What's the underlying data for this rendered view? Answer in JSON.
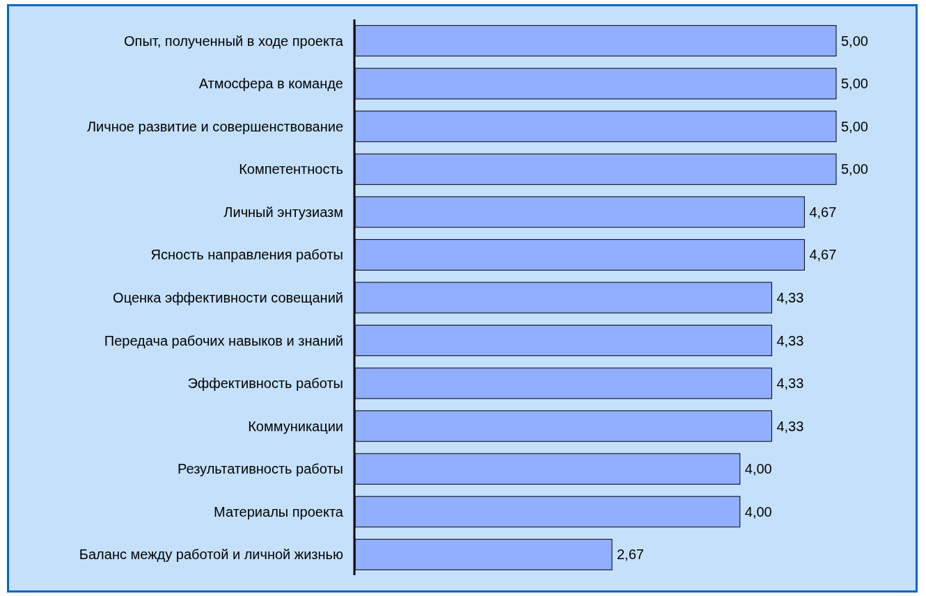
{
  "chart_data": {
    "type": "bar",
    "orientation": "horizontal",
    "categories": [
      "Опыт, полученный в ходе проекта",
      "Атмосфера в команде",
      "Личное развитие и совершенствование",
      "Компетентность",
      "Личный энтузиазм",
      "Ясность направления работы",
      "Оценка эффективности совещаний",
      "Передача рабочих навыков и знаний",
      "Эффективность работы",
      "Коммуникации",
      "Результативность работы",
      "Материалы проекта",
      "Баланс между работой и личной жизнью"
    ],
    "values": [
      5,
      5,
      5,
      5,
      4.67,
      4.67,
      4.33,
      4.33,
      4.33,
      4.33,
      4,
      4,
      2.67
    ],
    "value_labels": [
      "5,00",
      "5,00",
      "5,00",
      "5,00",
      "4,67",
      "4,67",
      "4,33",
      "4,33",
      "4,33",
      "4,33",
      "4,00",
      "4,00",
      "2,67"
    ],
    "color": "#91aeff"
  }
}
